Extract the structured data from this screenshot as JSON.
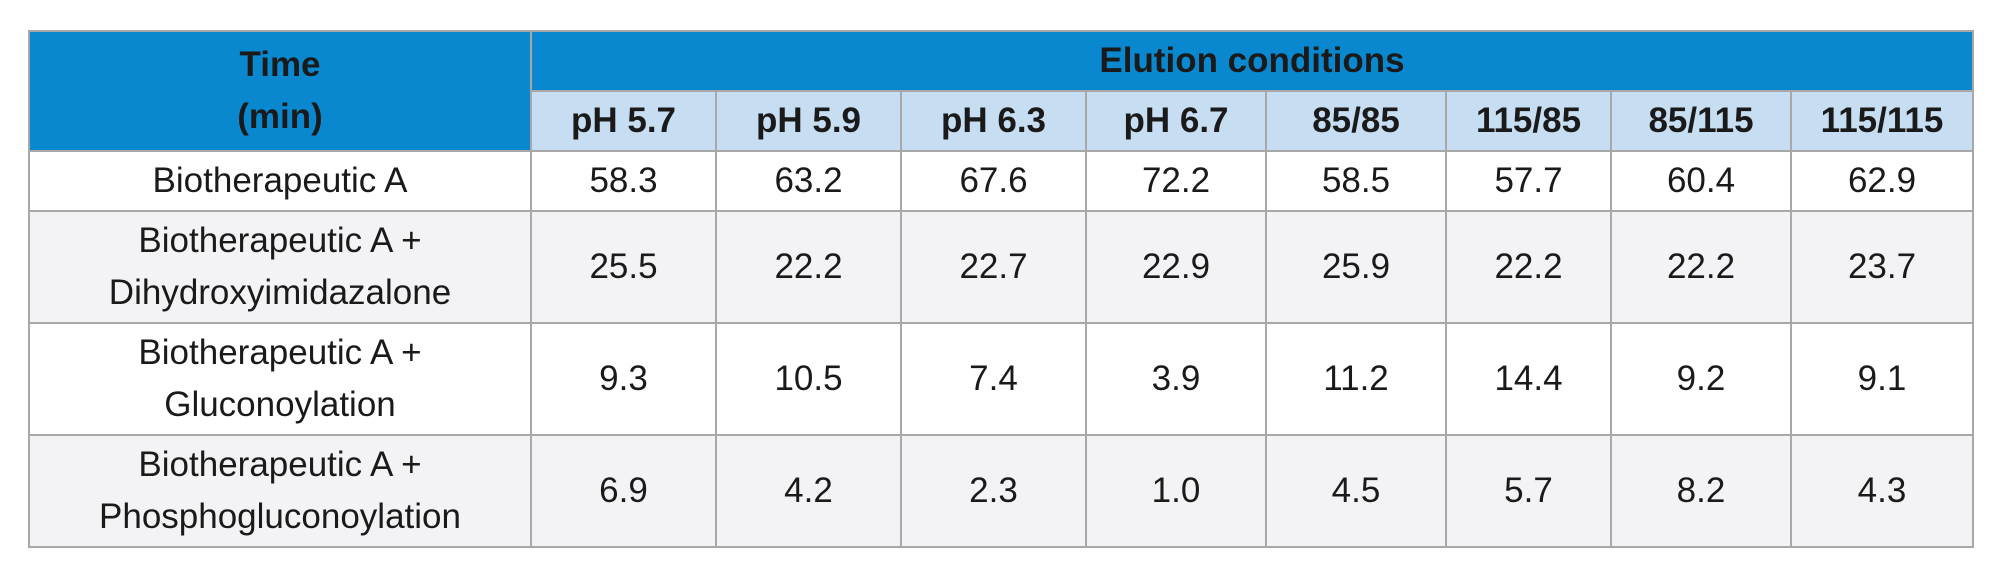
{
  "table": {
    "row_header": [
      "Time",
      "(min)"
    ],
    "group_header": "Elution conditions",
    "columns": [
      "pH 5.7",
      "pH 5.9",
      "pH 6.3",
      "pH 6.7",
      "85/85",
      "115/85",
      "85/115",
      "115/115"
    ],
    "rows": [
      {
        "label": [
          "Biotherapeutic A"
        ],
        "values": [
          "58.3",
          "63.2",
          "67.6",
          "72.2",
          "58.5",
          "57.7",
          "60.4",
          "62.9"
        ]
      },
      {
        "label": [
          "Biotherapeutic A +",
          "Dihydroxyimidazalone"
        ],
        "values": [
          "25.5",
          "22.2",
          "22.7",
          "22.9",
          "25.9",
          "22.2",
          "22.2",
          "23.7"
        ]
      },
      {
        "label": [
          "Biotherapeutic A +",
          "Gluconoylation"
        ],
        "values": [
          "9.3",
          "10.5",
          "7.4",
          "3.9",
          "11.2",
          "14.4",
          "9.2",
          "9.1"
        ]
      },
      {
        "label": [
          "Biotherapeutic A +",
          "Phosphogluconoylation"
        ],
        "values": [
          "6.9",
          "4.2",
          "2.3",
          "1.0",
          "4.5",
          "5.7",
          "8.2",
          "4.3"
        ]
      }
    ]
  },
  "colors": {
    "header_dark": "#0a88cf",
    "header_light": "#c7def2",
    "row_shade": "#f3f3f5",
    "border": "#a8a8a8"
  }
}
